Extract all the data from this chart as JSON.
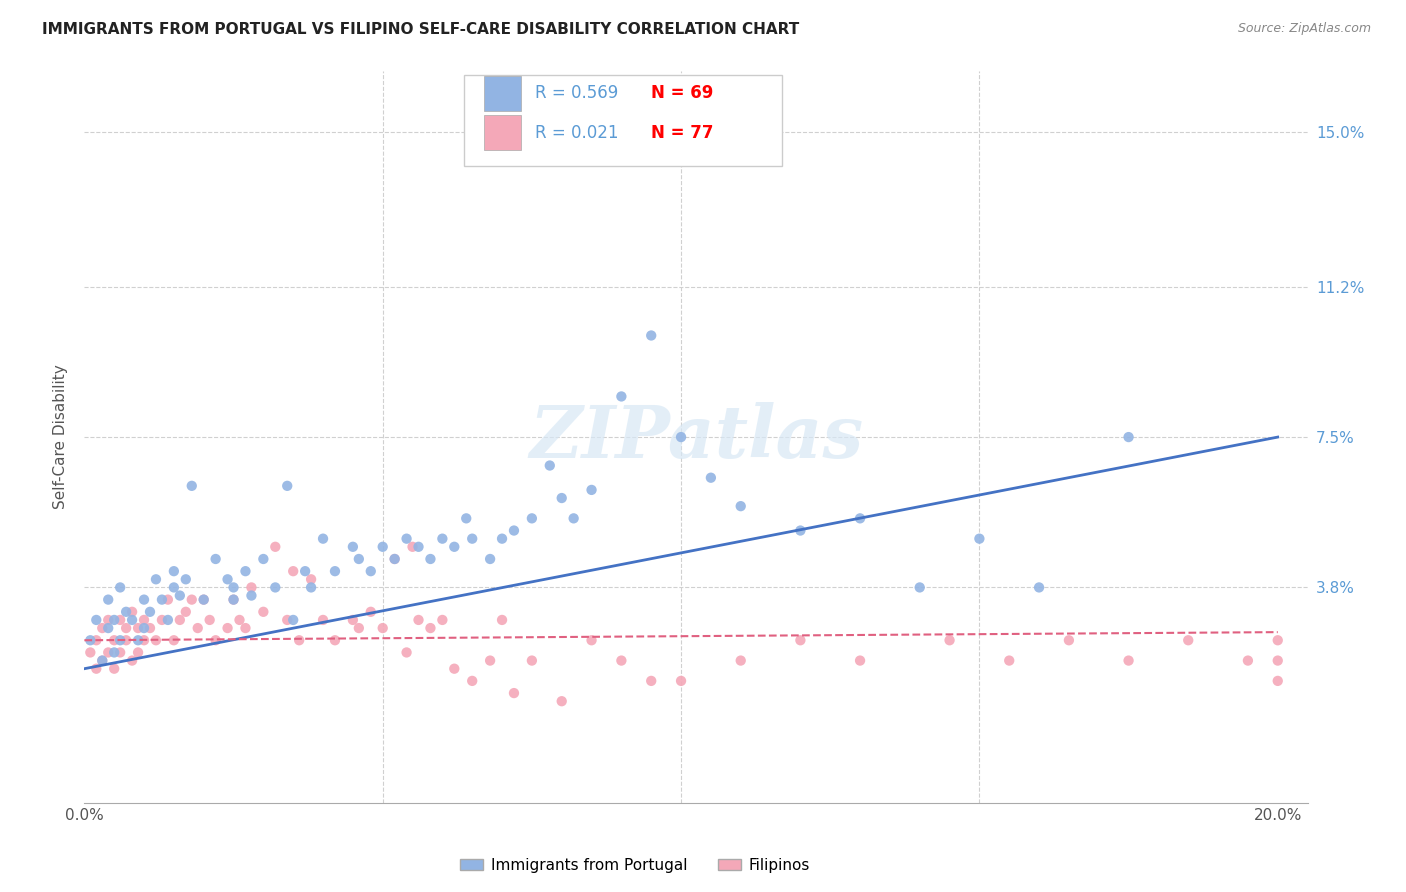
{
  "title": "IMMIGRANTS FROM PORTUGAL VS FILIPINO SELF-CARE DISABILITY CORRELATION CHART",
  "source": "Source: ZipAtlas.com",
  "ylabel": "Self-Care Disability",
  "legend_blue_r": "0.569",
  "legend_blue_n": "69",
  "legend_pink_r": "0.021",
  "legend_pink_n": "77",
  "legend_label_blue": "Immigrants from Portugal",
  "legend_label_pink": "Filipinos",
  "blue_color": "#92b4e3",
  "pink_color": "#f4a8b8",
  "line_blue": "#4472c4",
  "line_pink": "#e06080",
  "watermark": "ZIPatlas",
  "xlim": [
    0.0,
    0.205
  ],
  "ylim": [
    -0.015,
    0.165
  ],
  "yticks": [
    0.038,
    0.075,
    0.112,
    0.15
  ],
  "ytick_labels": [
    "3.8%",
    "7.5%",
    "11.2%",
    "15.0%"
  ],
  "blue_scatter_x": [
    0.001,
    0.002,
    0.003,
    0.004,
    0.004,
    0.005,
    0.005,
    0.006,
    0.006,
    0.007,
    0.008,
    0.009,
    0.01,
    0.01,
    0.011,
    0.012,
    0.013,
    0.014,
    0.015,
    0.015,
    0.016,
    0.017,
    0.018,
    0.02,
    0.022,
    0.024,
    0.025,
    0.025,
    0.027,
    0.028,
    0.03,
    0.032,
    0.034,
    0.035,
    0.037,
    0.038,
    0.04,
    0.042,
    0.045,
    0.046,
    0.048,
    0.05,
    0.052,
    0.054,
    0.056,
    0.058,
    0.06,
    0.062,
    0.064,
    0.065,
    0.068,
    0.07,
    0.072,
    0.075,
    0.078,
    0.08,
    0.082,
    0.085,
    0.09,
    0.095,
    0.1,
    0.105,
    0.11,
    0.12,
    0.13,
    0.14,
    0.15,
    0.16,
    0.175
  ],
  "blue_scatter_y": [
    0.025,
    0.03,
    0.02,
    0.035,
    0.028,
    0.03,
    0.022,
    0.038,
    0.025,
    0.032,
    0.03,
    0.025,
    0.035,
    0.028,
    0.032,
    0.04,
    0.035,
    0.03,
    0.042,
    0.038,
    0.036,
    0.04,
    0.063,
    0.035,
    0.045,
    0.04,
    0.038,
    0.035,
    0.042,
    0.036,
    0.045,
    0.038,
    0.063,
    0.03,
    0.042,
    0.038,
    0.05,
    0.042,
    0.048,
    0.045,
    0.042,
    0.048,
    0.045,
    0.05,
    0.048,
    0.045,
    0.05,
    0.048,
    0.055,
    0.05,
    0.045,
    0.05,
    0.052,
    0.055,
    0.068,
    0.06,
    0.055,
    0.062,
    0.085,
    0.1,
    0.075,
    0.065,
    0.058,
    0.052,
    0.055,
    0.038,
    0.05,
    0.038,
    0.075
  ],
  "pink_scatter_x": [
    0.001,
    0.002,
    0.002,
    0.003,
    0.003,
    0.004,
    0.004,
    0.005,
    0.005,
    0.006,
    0.006,
    0.007,
    0.007,
    0.008,
    0.008,
    0.009,
    0.009,
    0.01,
    0.01,
    0.011,
    0.012,
    0.013,
    0.014,
    0.015,
    0.016,
    0.017,
    0.018,
    0.019,
    0.02,
    0.021,
    0.022,
    0.024,
    0.025,
    0.026,
    0.027,
    0.028,
    0.03,
    0.032,
    0.034,
    0.035,
    0.036,
    0.038,
    0.04,
    0.042,
    0.045,
    0.046,
    0.048,
    0.05,
    0.052,
    0.054,
    0.055,
    0.056,
    0.058,
    0.06,
    0.062,
    0.065,
    0.068,
    0.07,
    0.072,
    0.075,
    0.08,
    0.085,
    0.09,
    0.095,
    0.1,
    0.11,
    0.12,
    0.13,
    0.145,
    0.155,
    0.165,
    0.175,
    0.185,
    0.195,
    0.2,
    0.2,
    0.2
  ],
  "pink_scatter_y": [
    0.022,
    0.018,
    0.025,
    0.02,
    0.028,
    0.022,
    0.03,
    0.025,
    0.018,
    0.03,
    0.022,
    0.025,
    0.028,
    0.02,
    0.032,
    0.022,
    0.028,
    0.025,
    0.03,
    0.028,
    0.025,
    0.03,
    0.035,
    0.025,
    0.03,
    0.032,
    0.035,
    0.028,
    0.035,
    0.03,
    0.025,
    0.028,
    0.035,
    0.03,
    0.028,
    0.038,
    0.032,
    0.048,
    0.03,
    0.042,
    0.025,
    0.04,
    0.03,
    0.025,
    0.03,
    0.028,
    0.032,
    0.028,
    0.045,
    0.022,
    0.048,
    0.03,
    0.028,
    0.03,
    0.018,
    0.015,
    0.02,
    0.03,
    0.012,
    0.02,
    0.01,
    0.025,
    0.02,
    0.015,
    0.015,
    0.02,
    0.025,
    0.02,
    0.025,
    0.02,
    0.025,
    0.02,
    0.025,
    0.02,
    0.025,
    0.02,
    0.015
  ],
  "blue_line_x": [
    0.0,
    0.2
  ],
  "blue_line_y": [
    0.018,
    0.075
  ],
  "pink_line_x": [
    0.0,
    0.2
  ],
  "pink_line_y": [
    0.025,
    0.027
  ]
}
